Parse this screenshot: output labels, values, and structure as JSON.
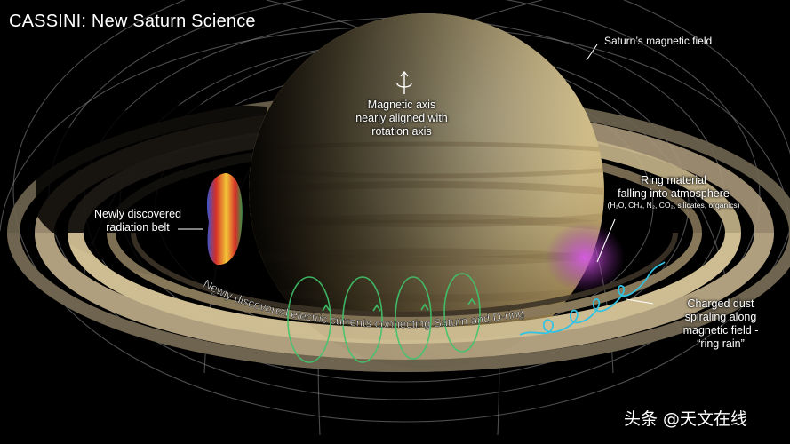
{
  "title": "CASSINI: New Saturn Science",
  "labels": {
    "magnetic_field": "Saturn’s magnetic field",
    "axis_line1": "Magnetic axis",
    "axis_line2": "nearly aligned with",
    "axis_line3": "rotation axis",
    "ring_line1": "Ring material",
    "ring_line2": "falling into atmosphere",
    "ring_composition": "(H₂O, CH₄, N₂, CO₂, silicates, organics)",
    "rad_line1": "Newly discovered",
    "rad_line2": "radiation belt",
    "dust_line1": "Charged dust",
    "dust_line2": "spiraling along",
    "dust_line3": "magnetic field -",
    "dust_line4": "“ring rain”",
    "currents": "Newly discovered electric currents connecting Saturn and D-ring"
  },
  "watermark": "头条 @天文在线",
  "colors": {
    "background": "#000000",
    "planet": "#d8c48e",
    "rings": "#b9a77c",
    "field_lines": "#9a9a9a",
    "currents": "#3fc46a",
    "ring_rain": "#2fc3e6",
    "infall": "#c64bd8"
  }
}
